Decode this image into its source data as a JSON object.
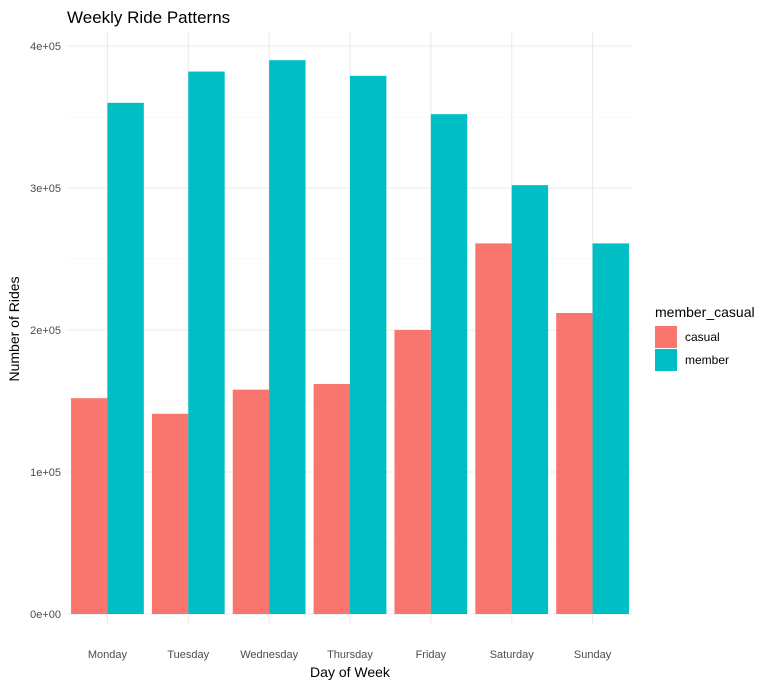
{
  "chart_data": {
    "type": "bar",
    "title": "Weekly Ride Patterns",
    "xlabel": "Day of Week",
    "ylabel": "Number of Rides",
    "categories": [
      "Monday",
      "Tuesday",
      "Wednesday",
      "Thursday",
      "Friday",
      "Saturday",
      "Sunday"
    ],
    "series": [
      {
        "name": "casual",
        "color": "#F8766D",
        "values": [
          152000,
          141000,
          158000,
          162000,
          200000,
          261000,
          212000
        ]
      },
      {
        "name": "member",
        "color": "#00BFC4",
        "values": [
          360000,
          382000,
          390000,
          379000,
          352000,
          302000,
          261000
        ]
      }
    ],
    "ylim": [
      0,
      400000
    ],
    "yticks": [
      0,
      100000,
      200000,
      300000,
      400000
    ],
    "ytick_labels": [
      "0e+00",
      "1e+05",
      "2e+05",
      "3e+05",
      "4e+05"
    ],
    "legend_title": "member_casual",
    "legend_position": "right",
    "grid": true
  }
}
